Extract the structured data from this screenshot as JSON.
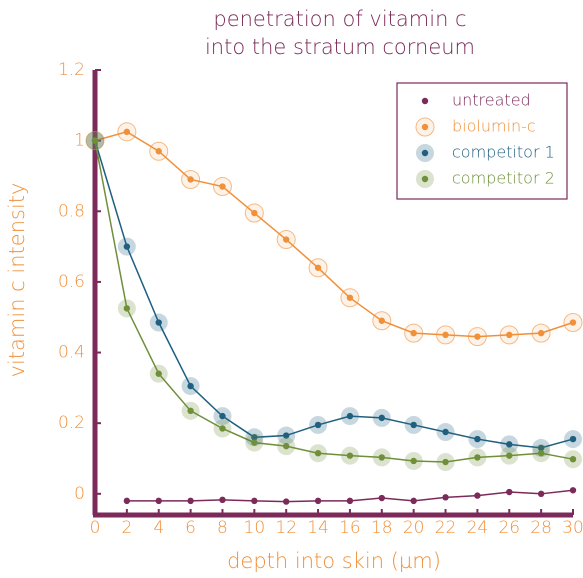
{
  "chart_data": {
    "type": "line",
    "title": [
      "penetration of vitamin c",
      "into the stratum corneum"
    ],
    "x_label": "depth into skin (µm)",
    "y_label": "vitamin c intensity",
    "x": [
      0,
      2,
      4,
      6,
      8,
      10,
      12,
      14,
      16,
      18,
      20,
      22,
      24,
      26,
      28,
      30
    ],
    "series": [
      {
        "name": "untreated",
        "color": "#7b2a5a",
        "values": [
          null,
          -0.02,
          -0.02,
          -0.02,
          -0.017,
          -0.02,
          -0.022,
          -0.02,
          -0.02,
          -0.012,
          -0.02,
          -0.01,
          -0.005,
          0.005,
          0,
          0.01
        ]
      },
      {
        "name": "biolumin-c",
        "color": "#f0903a",
        "values": [
          1.0,
          1.025,
          0.97,
          0.89,
          0.87,
          0.795,
          0.72,
          0.64,
          0.555,
          0.49,
          0.455,
          0.45,
          0.445,
          0.45,
          0.455,
          0.485
        ]
      },
      {
        "name": "competitor 1",
        "color": "#1f5f7f",
        "values": [
          1.0,
          0.7,
          0.485,
          0.305,
          0.22,
          0.16,
          0.165,
          0.195,
          0.22,
          0.215,
          0.195,
          0.175,
          0.155,
          0.14,
          0.13,
          0.155
        ]
      },
      {
        "name": "competitor 2",
        "color": "#6f8f3a",
        "values": [
          1.0,
          0.525,
          0.34,
          0.235,
          0.185,
          0.145,
          0.135,
          0.115,
          0.108,
          0.103,
          0.093,
          0.09,
          0.103,
          0.108,
          0.115,
          0.098
        ]
      }
    ],
    "xlim": [
      0,
      30
    ],
    "xticks": [
      0,
      2,
      4,
      6,
      8,
      10,
      12,
      14,
      16,
      18,
      20,
      22,
      24,
      26,
      28,
      30
    ],
    "ylim": [
      -0.06,
      1.2
    ],
    "yticks": [
      0,
      0.2,
      0.4,
      0.6,
      0.8,
      1,
      1.2
    ],
    "legend": "upper right"
  }
}
